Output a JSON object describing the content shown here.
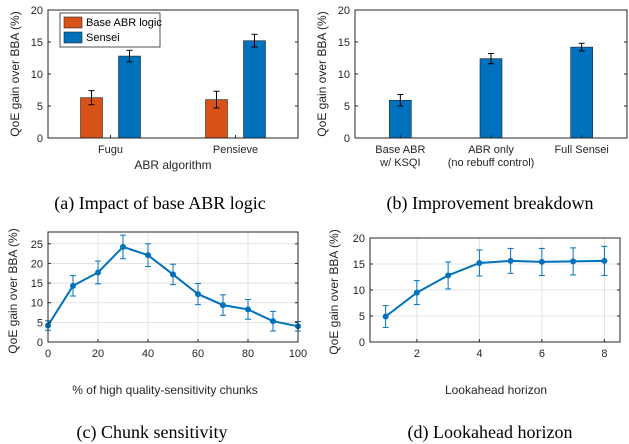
{
  "colors": {
    "base_abr": "#d95319",
    "sensei": "#0072bd",
    "line": "#0072bd",
    "axis": "#262626",
    "grid": "#dcdcdc"
  },
  "chart_data": [
    {
      "type": "bar",
      "caption": "(a) Impact of base ABR logic",
      "xlabel": "ABR algorithm",
      "ylabel": "QoE gain over BBA (%)",
      "ylim": [
        0,
        20
      ],
      "yticks": [
        0,
        5,
        10,
        15,
        20
      ],
      "categories": [
        "Fugu",
        "Pensieve"
      ],
      "series": [
        {
          "name": "Base ABR logic",
          "color": "#d95319",
          "values": [
            6.3,
            6.0
          ],
          "err": [
            1.1,
            1.3
          ]
        },
        {
          "name": "Sensei",
          "color": "#0072bd",
          "values": [
            12.8,
            15.2
          ],
          "err": [
            0.9,
            1.0
          ]
        }
      ],
      "legend": "top-left",
      "grid": false
    },
    {
      "type": "bar",
      "caption": "(b) Improvement breakdown",
      "xlabel": "",
      "ylabel": "QoE gain over BBA (%)",
      "ylim": [
        0,
        20
      ],
      "yticks": [
        0,
        5,
        10,
        15,
        20
      ],
      "categories": [
        {
          "line1": "Base ABR",
          "line2": "w/ KSQI"
        },
        {
          "line1": "ABR only",
          "line2": "(no rebuff control)"
        },
        {
          "line1": "Full Sensei",
          "line2": ""
        }
      ],
      "values": [
        5.9,
        12.4,
        14.2
      ],
      "err": [
        0.9,
        0.8,
        0.6
      ],
      "color": "#0072bd",
      "grid": false
    },
    {
      "type": "line",
      "caption": "(c) Chunk sensitivity",
      "xlabel": "% of high quality-sensitivity chunks",
      "ylabel": "QoE gain over BBA (%)",
      "xlim": [
        0,
        100
      ],
      "ylim": [
        0,
        28
      ],
      "xticks": [
        0,
        20,
        40,
        60,
        80,
        100
      ],
      "yticks": [
        0,
        5,
        10,
        15,
        20,
        25
      ],
      "x": [
        0,
        10,
        20,
        30,
        40,
        50,
        60,
        70,
        80,
        90,
        100
      ],
      "y": [
        4.2,
        14.3,
        17.7,
        24.2,
        22.1,
        17.2,
        12.2,
        9.4,
        8.3,
        5.3,
        4.0
      ],
      "err": [
        1.2,
        2.6,
        2.9,
        3.0,
        2.9,
        2.6,
        2.7,
        2.6,
        2.5,
        2.5,
        1.2
      ],
      "grid": true
    },
    {
      "type": "line",
      "caption": "(d) Lookahead horizon",
      "xlabel": "Lookahead horizon",
      "ylabel": "QoE gain over BBA (%)",
      "xlim": [
        0.5,
        8.5
      ],
      "ylim": [
        0,
        20
      ],
      "xticks": [
        2,
        4,
        6,
        8
      ],
      "yticks": [
        0,
        5,
        10,
        15,
        20
      ],
      "x": [
        1,
        2,
        3,
        4,
        5,
        6,
        7,
        8
      ],
      "y": [
        4.9,
        9.5,
        12.8,
        15.2,
        15.6,
        15.4,
        15.5,
        15.6
      ],
      "err": [
        2.1,
        2.3,
        2.6,
        2.5,
        2.4,
        2.6,
        2.6,
        2.8
      ],
      "grid": true
    }
  ]
}
